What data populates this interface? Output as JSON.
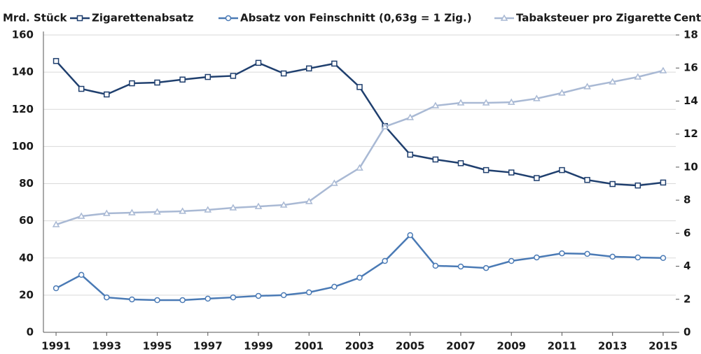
{
  "chart_data": {
    "type": "line",
    "y_label": "Mrd. Stück",
    "y2_label": "Cent",
    "x": [
      1991,
      1992,
      1993,
      1994,
      1995,
      1996,
      1997,
      1998,
      1999,
      2000,
      2001,
      2002,
      2003,
      2004,
      2005,
      2006,
      2007,
      2008,
      2009,
      2010,
      2011,
      2012,
      2013,
      2014,
      2015
    ],
    "xlim": [
      1990.5,
      2015.5
    ],
    "xticks": [
      1991,
      1993,
      1995,
      1997,
      1999,
      2001,
      2003,
      2005,
      2007,
      2009,
      2011,
      2013,
      2015
    ],
    "ylim": [
      0,
      160
    ],
    "yticks": [
      0,
      20,
      40,
      60,
      80,
      100,
      120,
      140,
      160
    ],
    "y2lim": [
      0,
      18
    ],
    "y2ticks": [
      0,
      2,
      4,
      6,
      8,
      10,
      12,
      14,
      16,
      18
    ],
    "grid": true,
    "series": [
      {
        "name": "Zigarettenabsatz",
        "color": "#1f3f6e",
        "marker": "square",
        "values": [
          146,
          131,
          128,
          134,
          134.4,
          136,
          137.4,
          138,
          145,
          139.3,
          142,
          144.6,
          132,
          111,
          95.6,
          93,
          91,
          87.3,
          86,
          83,
          87.3,
          82,
          79.8,
          79,
          80.6
        ]
      },
      {
        "name": "Absatz von Feinschnitt (0,63g = 1 Zig.)",
        "color": "#4a7ab5",
        "marker": "circle",
        "values": [
          23.7,
          30.9,
          18.8,
          17.7,
          17.3,
          17.3,
          18.1,
          18.8,
          19.6,
          20,
          21.5,
          24.5,
          29.4,
          38.4,
          52.3,
          35.8,
          35.4,
          34.6,
          38.4,
          40.3,
          42.5,
          42.2,
          40.7,
          40.3,
          40
        ]
      },
      {
        "name": "Tabaksteuer pro Zigarette",
        "color": "#a9b9d4",
        "marker": "triangle",
        "axis": "y2",
        "values": [
          6.52,
          7.03,
          7.2,
          7.24,
          7.29,
          7.33,
          7.41,
          7.54,
          7.62,
          7.71,
          7.92,
          9.02,
          9.95,
          12.45,
          13.0,
          13.72,
          13.89,
          13.89,
          13.93,
          14.15,
          14.49,
          14.87,
          15.16,
          15.46,
          15.84
        ]
      }
    ]
  }
}
